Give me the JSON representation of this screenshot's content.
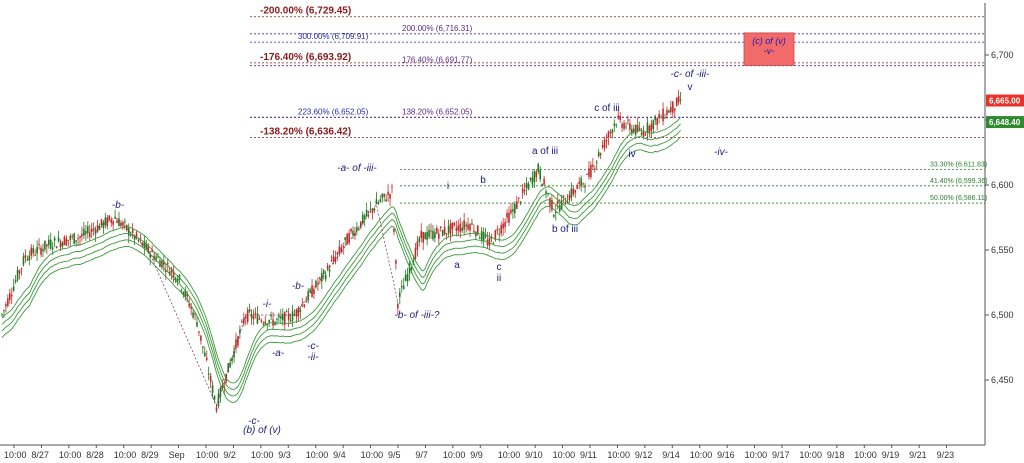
{
  "chart_data": {
    "type": "candlestick",
    "ylim": [
      6400,
      6740
    ],
    "price_ticks": [
      6450,
      6500,
      6550,
      6600,
      6650,
      6700
    ],
    "price_tick_labels": [
      "6,450",
      "6,500",
      "6,550",
      "6,600",
      "6,650",
      "6,700"
    ],
    "time_labels": [
      "10:00",
      "8/27",
      "10:00",
      "8/28",
      "10:00",
      "8/29",
      "Sep",
      "10:00",
      "9/2",
      "10:00",
      "9/3",
      "10:00",
      "9/4",
      "10:00",
      "9/5",
      "9/7",
      "10:00",
      "9/9",
      "10:00",
      "9/10",
      "10:00",
      "9/11",
      "10:00",
      "9/12",
      "9/14",
      "10:00",
      "9/16",
      "10:00",
      "9/17",
      "10:00",
      "9/18",
      "10:00",
      "9/19",
      "9/21",
      "9/23"
    ],
    "price_badges": [
      {
        "text": "6,665.00",
        "color": "#e8332a",
        "value": 6665
      },
      {
        "text": "6,648.40",
        "color": "#2e8b2e",
        "value": 6648.4
      }
    ],
    "levels": [
      {
        "left_text": "-200.00% (6,729.45)",
        "value": 6729.45,
        "color": "#8b1a1a"
      },
      {
        "left_text": "200.00% (6,716.31)",
        "value": 6716.31,
        "color": "#5a2a8a"
      },
      {
        "left_text": "300.00% (6,709.91)",
        "value": 6709.91,
        "color": "#2a2aaa"
      },
      {
        "left_text": "-176.40% (6,693.92)",
        "value": 6693.92,
        "color": "#8b1a1a"
      },
      {
        "left_text": "176.40% (6,691.77)",
        "value": 6691.77,
        "color": "#5a2a8a"
      },
      {
        "left_text": "223.60% (6,652.05)",
        "value": 6652.05,
        "color": "#2a2aaa"
      },
      {
        "left_text": "138.20% (6,652.05)",
        "value": 6652.05,
        "color": "#5a2a8a"
      },
      {
        "left_text": "-138.20% (6,636.42)",
        "value": 6636.42,
        "color": "#8b1a1a"
      },
      {
        "left_text": "33.30% (6,611.83)",
        "value": 6611.83,
        "color": "#2e7d2e"
      },
      {
        "left_text": "41.40% (6,599.36)",
        "value": 6599.36,
        "color": "#2e7d2e"
      },
      {
        "left_text": "50.00% (6,586.11)",
        "value": 6586.11,
        "color": "#2e7d2e"
      }
    ],
    "target_box": {
      "line1": "(c) of (v)",
      "line2": "-v-",
      "price_range": [
        6692,
        6717
      ]
    },
    "wave_labels": [
      "-b-",
      "-a- of -iii-",
      "i",
      "b",
      "a of iii",
      "c of iii",
      "-c- of -iii-",
      "v",
      "-i-",
      "-b-",
      "-iv-",
      "iv",
      "a",
      "c",
      "ii",
      "-b- of -iii-?",
      "-a-",
      "-c-",
      "-ii-",
      "b of iii",
      "-c-",
      "(b) of (v)"
    ],
    "anchors": [
      {
        "t": 0,
        "p": 6500
      },
      {
        "t": 12,
        "p": 6545
      },
      {
        "t": 25,
        "p": 6555
      },
      {
        "t": 40,
        "p": 6560
      },
      {
        "t": 58,
        "p": 6575
      },
      {
        "t": 75,
        "p": 6550
      },
      {
        "t": 90,
        "p": 6530
      },
      {
        "t": 100,
        "p": 6495
      },
      {
        "t": 110,
        "p": 6430
      },
      {
        "t": 125,
        "p": 6500
      },
      {
        "t": 140,
        "p": 6495
      },
      {
        "t": 150,
        "p": 6500
      },
      {
        "t": 165,
        "p": 6530
      },
      {
        "t": 178,
        "p": 6560
      },
      {
        "t": 192,
        "p": 6585
      },
      {
        "t": 200,
        "p": 6595
      },
      {
        "t": 203,
        "p": 6510
      },
      {
        "t": 215,
        "p": 6560
      },
      {
        "t": 228,
        "p": 6565
      },
      {
        "t": 240,
        "p": 6570
      },
      {
        "t": 250,
        "p": 6555
      },
      {
        "t": 262,
        "p": 6580
      },
      {
        "t": 275,
        "p": 6612
      },
      {
        "t": 283,
        "p": 6580
      },
      {
        "t": 300,
        "p": 6605
      },
      {
        "t": 315,
        "p": 6650
      },
      {
        "t": 328,
        "p": 6640
      },
      {
        "t": 340,
        "p": 6655
      },
      {
        "t": 348,
        "p": 6665
      }
    ]
  }
}
